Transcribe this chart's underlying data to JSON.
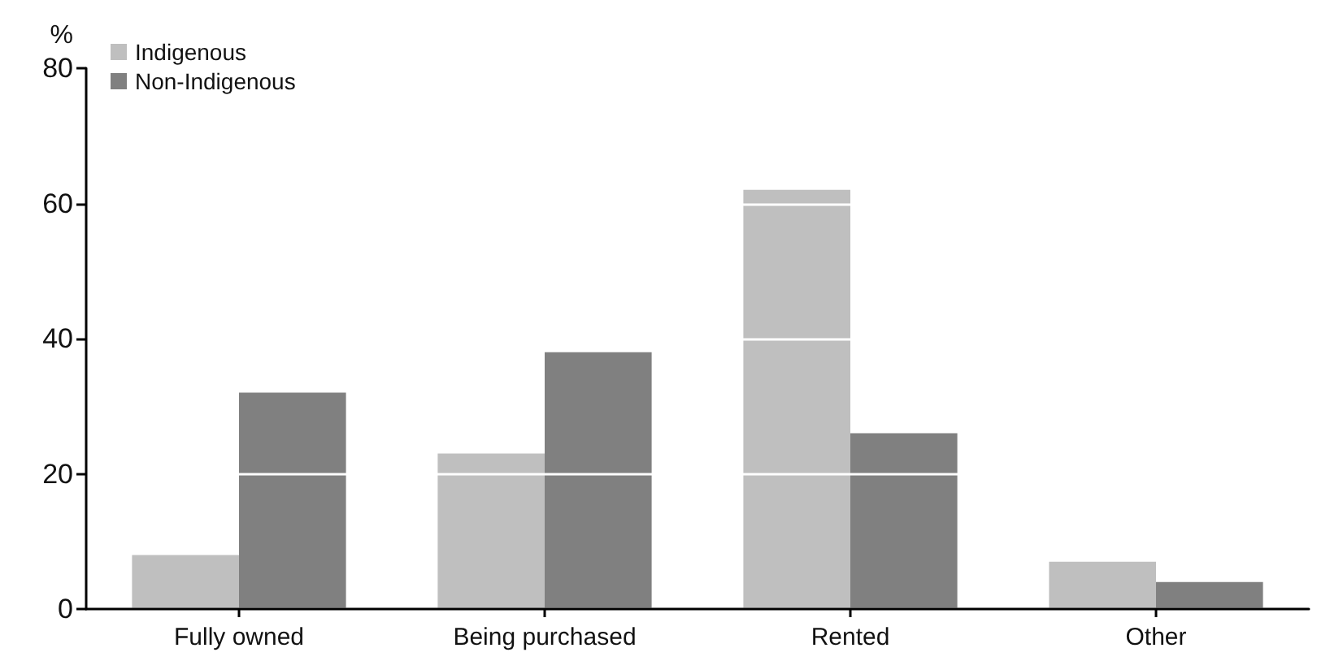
{
  "chart_data": {
    "type": "bar",
    "ylabel": "%",
    "categories": [
      "Fully owned",
      "Being purchased",
      "Rented",
      "Other"
    ],
    "series": [
      {
        "name": "Indigenous",
        "color": "#bfbfbf",
        "values": [
          8,
          23,
          62,
          7
        ]
      },
      {
        "name": "Non-Indigenous",
        "color": "#808080",
        "values": [
          32,
          38,
          26,
          4
        ]
      }
    ],
    "ylim": [
      0,
      80
    ],
    "yticks": [
      0,
      20,
      40,
      60,
      80
    ],
    "grid": "y",
    "legend": "top left"
  }
}
